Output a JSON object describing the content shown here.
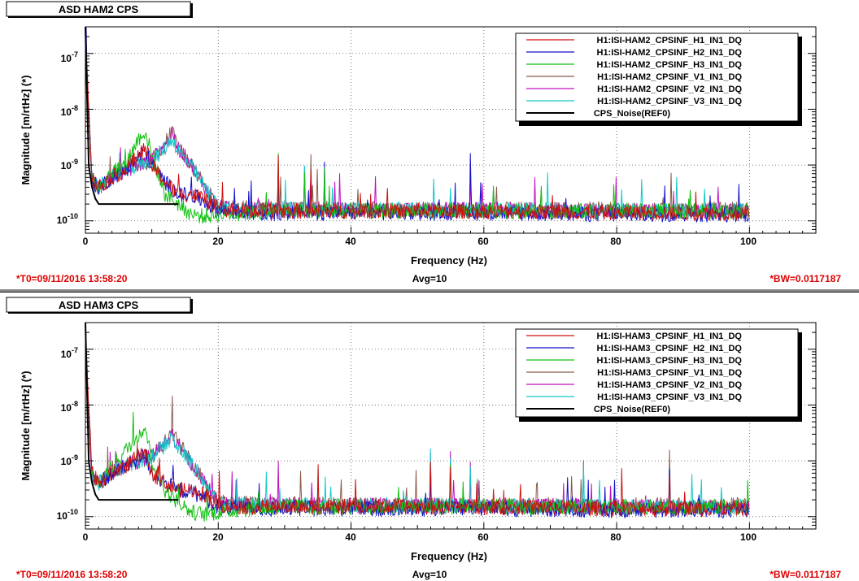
{
  "charts": [
    {
      "title": "ASD HAM2 CPS",
      "xlabel": "Frequency (Hz)",
      "ylabel": "Magnitude [m/rtHz] (*)",
      "t0": "*T0=09/11/2016 13:58:20",
      "avg": "Avg=10",
      "bw": "*BW=0.0117187",
      "xticks": [
        "0",
        "20",
        "40",
        "60",
        "80",
        "100"
      ],
      "yticks": [
        {
          "base": "10",
          "exp": "-7"
        },
        {
          "base": "10",
          "exp": "-8"
        },
        {
          "base": "10",
          "exp": "-9"
        },
        {
          "base": "10",
          "exp": "-10"
        }
      ],
      "legend": [
        "H1:ISI-HAM2_CPSINF_H1_IN1_DQ",
        "H1:ISI-HAM2_CPSINF_H2_IN1_DQ",
        "H1:ISI-HAM2_CPSINF_H3_IN1_DQ",
        "H1:ISI-HAM2_CPSINF_V1_IN1_DQ",
        "H1:ISI-HAM2_CPSINF_V2_IN1_DQ",
        "H1:ISI-HAM2_CPSINF_V3_IN1_DQ",
        "CPS_Noise(REF0)"
      ]
    },
    {
      "title": "ASD HAM3 CPS",
      "xlabel": "Frequency (Hz)",
      "ylabel": "Magnitude [m/rtHz] (*)",
      "t0": "*T0=09/11/2016 13:58:20",
      "avg": "Avg=10",
      "bw": "*BW=0.0117187",
      "xticks": [
        "0",
        "20",
        "40",
        "60",
        "80",
        "100"
      ],
      "yticks": [
        {
          "base": "10",
          "exp": "-7"
        },
        {
          "base": "10",
          "exp": "-8"
        },
        {
          "base": "10",
          "exp": "-9"
        },
        {
          "base": "10",
          "exp": "-10"
        }
      ],
      "legend": [
        "H1:ISI-HAM3_CPSINF_H1_IN1_DQ",
        "H1:ISI-HAM3_CPSINF_H2_IN1_DQ",
        "H1:ISI-HAM3_CPSINF_H3_IN1_DQ",
        "H1:ISI-HAM3_CPSINF_V1_IN1_DQ",
        "H1:ISI-HAM3_CPSINF_V2_IN1_DQ",
        "H1:ISI-HAM3_CPSINF_V3_IN1_DQ",
        "CPS_Noise(REF0)"
      ]
    }
  ],
  "chart_data": [
    {
      "type": "line",
      "title": "ASD HAM2 CPS",
      "xlabel": "Frequency (Hz)",
      "ylabel": "Magnitude [m/rtHz] (*)",
      "xlim": [
        0,
        110
      ],
      "ylim": [
        6e-11,
        3e-07
      ],
      "yscale": "log",
      "grid": true,
      "legend_position": "top-right",
      "series": [
        {
          "name": "H1:ISI-HAM2_CPSINF_H1_IN1_DQ",
          "color": "#d01010",
          "x": [
            0,
            1,
            2,
            4,
            6,
            8,
            9,
            10,
            12,
            14,
            16,
            18,
            20,
            25,
            30,
            40,
            60,
            80,
            100
          ],
          "y": [
            2e-07,
            6e-10,
            4e-10,
            6e-10,
            8e-10,
            1.5e-09,
            2e-09,
            1e-09,
            5e-10,
            3e-10,
            3e-10,
            2.5e-10,
            1.6e-10,
            1.5e-10,
            1.5e-10,
            1.5e-10,
            1.5e-10,
            1.4e-10,
            1.4e-10
          ]
        },
        {
          "name": "H1:ISI-HAM2_CPSINF_H2_IN1_DQ",
          "color": "#1010c8",
          "x": [
            0,
            1,
            2,
            4,
            6,
            8,
            9,
            10,
            12,
            14,
            16,
            18,
            20,
            25,
            30,
            40,
            60,
            80,
            100
          ],
          "y": [
            1.5e-07,
            5e-10,
            4e-10,
            6e-10,
            8e-10,
            1.4e-09,
            1.8e-09,
            1e-09,
            5e-10,
            3e-10,
            2.8e-10,
            2.2e-10,
            1.5e-10,
            1.4e-10,
            1.4e-10,
            1.4e-10,
            1.4e-10,
            1.3e-10,
            1.3e-10
          ]
        },
        {
          "name": "H1:ISI-HAM2_CPSINF_H3_IN1_DQ",
          "color": "#10c010",
          "x": [
            0,
            1,
            2,
            4,
            6,
            8,
            9,
            10,
            12,
            14,
            16,
            18,
            20,
            25,
            30,
            40,
            60,
            80,
            100
          ],
          "y": [
            1.5e-07,
            5e-10,
            4e-10,
            8e-10,
            1e-09,
            3e-09,
            4e-09,
            1.5e-09,
            3e-10,
            2e-10,
            1.3e-10,
            1.2e-10,
            1.3e-10,
            1.4e-10,
            1.5e-10,
            1.5e-10,
            1.5e-10,
            1.5e-10,
            1.5e-10
          ]
        },
        {
          "name": "H1:ISI-HAM2_CPSINF_V1_IN1_DQ",
          "color": "#8a5a4a",
          "x": [
            0,
            1,
            2,
            4,
            6,
            8,
            10,
            12,
            13,
            14,
            16,
            18,
            20,
            25,
            30,
            40,
            60,
            80,
            100
          ],
          "y": [
            1e-07,
            5e-10,
            4e-10,
            6e-10,
            8e-10,
            1e-09,
            1.2e-09,
            2.5e-09,
            4e-09,
            2e-09,
            1e-09,
            4e-10,
            1.8e-10,
            1.7e-10,
            1.7e-10,
            1.6e-10,
            1.6e-10,
            1.6e-10,
            1.6e-10
          ]
        },
        {
          "name": "H1:ISI-HAM2_CPSINF_V2_IN1_DQ",
          "color": "#c010c0",
          "x": [
            0,
            1,
            2,
            4,
            6,
            8,
            10,
            12,
            13,
            14,
            16,
            18,
            20,
            25,
            30,
            40,
            60,
            80,
            100
          ],
          "y": [
            1e-07,
            5e-10,
            4e-10,
            6e-10,
            8e-10,
            1e-09,
            1.2e-09,
            2.2e-09,
            3.5e-09,
            2e-09,
            1e-09,
            4e-10,
            1.7e-10,
            1.6e-10,
            1.6e-10,
            1.6e-10,
            1.6e-10,
            1.5e-10,
            1.5e-10
          ]
        },
        {
          "name": "H1:ISI-HAM2_CPSINF_V3_IN1_DQ",
          "color": "#10c8c8",
          "x": [
            0,
            1,
            2,
            4,
            6,
            8,
            10,
            12,
            13,
            14,
            16,
            18,
            20,
            25,
            30,
            40,
            60,
            80,
            100
          ],
          "y": [
            1e-07,
            5e-10,
            4e-10,
            6e-10,
            8e-10,
            1e-09,
            1.2e-09,
            2e-09,
            3e-09,
            1.8e-09,
            9e-10,
            4e-10,
            1.7e-10,
            1.6e-10,
            1.6e-10,
            1.6e-10,
            1.6e-10,
            1.5e-10,
            1.5e-10
          ]
        },
        {
          "name": "CPS_Noise(REF0)",
          "color": "#000000",
          "x": [
            0,
            0.5,
            1,
            1.5,
            2,
            3,
            6,
            10,
            14
          ],
          "y": [
            3e-07,
            1e-09,
            4e-10,
            2.5e-10,
            2e-10,
            2e-10,
            2e-10,
            2e-10,
            2e-10
          ]
        }
      ],
      "peaks_hz": [
        29,
        33,
        34,
        36,
        55,
        58
      ]
    },
    {
      "type": "line",
      "title": "ASD HAM3 CPS",
      "xlabel": "Frequency (Hz)",
      "ylabel": "Magnitude [m/rtHz] (*)",
      "xlim": [
        0,
        110
      ],
      "ylim": [
        6e-11,
        3e-07
      ],
      "yscale": "log",
      "grid": true,
      "legend_position": "top-right",
      "series": [
        {
          "name": "H1:ISI-HAM3_CPSINF_H1_IN1_DQ",
          "color": "#d01010",
          "x": [
            0,
            1,
            2,
            4,
            6,
            8,
            9,
            10,
            12,
            14,
            16,
            18,
            20,
            25,
            30,
            40,
            60,
            80,
            100
          ],
          "y": [
            2e-07,
            6e-10,
            4e-10,
            6e-10,
            8e-10,
            1.2e-09,
            1.4e-09,
            6e-10,
            4e-10,
            3e-10,
            3e-10,
            2.5e-10,
            1.6e-10,
            1.5e-10,
            1.5e-10,
            1.5e-10,
            1.5e-10,
            1.4e-10,
            1.4e-10
          ]
        },
        {
          "name": "H1:ISI-HAM3_CPSINF_H2_IN1_DQ",
          "color": "#1010c8",
          "x": [
            0,
            1,
            2,
            4,
            6,
            8,
            9,
            10,
            12,
            14,
            16,
            18,
            20,
            25,
            30,
            40,
            60,
            80,
            100
          ],
          "y": [
            1.5e-07,
            5e-10,
            4e-10,
            6e-10,
            8e-10,
            1.1e-09,
            1.3e-09,
            6e-10,
            4e-10,
            3e-10,
            2.8e-10,
            2.2e-10,
            1.5e-10,
            1.4e-10,
            1.4e-10,
            1.4e-10,
            1.4e-10,
            1.3e-10,
            1.3e-10
          ]
        },
        {
          "name": "H1:ISI-HAM3_CPSINF_H3_IN1_DQ",
          "color": "#10c010",
          "x": [
            0,
            1,
            2,
            4,
            6,
            8,
            9,
            10,
            12,
            14,
            16,
            18,
            20,
            25,
            30,
            40,
            60,
            80,
            100
          ],
          "y": [
            1.5e-07,
            5e-10,
            4e-10,
            8e-10,
            1.5e-09,
            3e-09,
            4e-09,
            1e-09,
            3e-10,
            1.8e-10,
            1.2e-10,
            1.1e-10,
            1.2e-10,
            1.4e-10,
            1.5e-10,
            1.5e-10,
            1.5e-10,
            1.5e-10,
            1.5e-10
          ]
        },
        {
          "name": "H1:ISI-HAM3_CPSINF_V1_IN1_DQ",
          "color": "#8a5a4a",
          "x": [
            0,
            1,
            2,
            4,
            6,
            8,
            10,
            12,
            13,
            14,
            16,
            18,
            20,
            25,
            30,
            40,
            60,
            80,
            100
          ],
          "y": [
            1e-07,
            5e-10,
            4e-10,
            6e-10,
            8e-10,
            1e-09,
            1.2e-09,
            2.2e-09,
            3.5e-09,
            2e-09,
            1e-09,
            4e-10,
            1.8e-10,
            1.7e-10,
            1.7e-10,
            1.6e-10,
            1.6e-10,
            1.6e-10,
            1.6e-10
          ]
        },
        {
          "name": "H1:ISI-HAM3_CPSINF_V2_IN1_DQ",
          "color": "#c010c0",
          "x": [
            0,
            1,
            2,
            4,
            6,
            8,
            10,
            12,
            13,
            14,
            16,
            18,
            20,
            25,
            30,
            40,
            60,
            80,
            100
          ],
          "y": [
            1e-07,
            5e-10,
            4e-10,
            6e-10,
            8e-10,
            1e-09,
            1.2e-09,
            2e-09,
            3e-09,
            1.8e-09,
            9e-10,
            4e-10,
            1.7e-10,
            1.6e-10,
            1.6e-10,
            1.6e-10,
            1.6e-10,
            1.5e-10,
            1.5e-10
          ]
        },
        {
          "name": "H1:ISI-HAM3_CPSINF_V3_IN1_DQ",
          "color": "#10c8c8",
          "x": [
            0,
            1,
            2,
            4,
            6,
            8,
            10,
            12,
            13,
            14,
            16,
            18,
            20,
            25,
            30,
            40,
            60,
            80,
            100
          ],
          "y": [
            1e-07,
            5e-10,
            4e-10,
            6e-10,
            8e-10,
            1e-09,
            1.2e-09,
            1.9e-09,
            2.8e-09,
            1.7e-09,
            9e-10,
            4e-10,
            1.7e-10,
            1.6e-10,
            1.6e-10,
            1.6e-10,
            1.6e-10,
            1.5e-10,
            1.5e-10
          ]
        },
        {
          "name": "CPS_Noise(REF0)",
          "color": "#000000",
          "x": [
            0,
            0.5,
            1,
            1.5,
            2,
            3,
            6,
            10,
            14
          ],
          "y": [
            3e-07,
            1e-09,
            4e-10,
            2.5e-10,
            2e-10,
            2e-10,
            2e-10,
            2e-10,
            2e-10
          ]
        }
      ],
      "peaks_hz": [
        29,
        35,
        52,
        55,
        58,
        75,
        88
      ]
    }
  ]
}
